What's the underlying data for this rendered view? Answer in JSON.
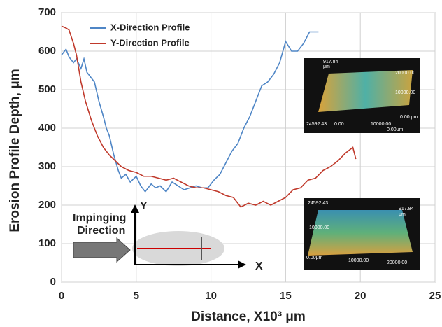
{
  "chart_data": {
    "type": "line",
    "xlabel": "Distance, X10³ μm",
    "ylabel": "Erosion  Profile Depth, μm",
    "xlim": [
      0,
      25
    ],
    "xticks": [
      0,
      5,
      10,
      15,
      20,
      25
    ],
    "ylim": [
      0,
      700
    ],
    "yticks": [
      0,
      100,
      200,
      300,
      400,
      500,
      600,
      700
    ],
    "grid": true,
    "legend": "upper-left",
    "series": [
      {
        "name": "X-Direction Profile",
        "color": "#4f86c6",
        "x": [
          0,
          0.3,
          0.5,
          0.8,
          1,
          1.3,
          1.5,
          1.7,
          2,
          2.2,
          2.5,
          2.8,
          3,
          3.2,
          3.5,
          3.8,
          4,
          4.3,
          4.6,
          5,
          5.3,
          5.6,
          6,
          6.3,
          6.6,
          7,
          7.4,
          7.8,
          8.2,
          8.6,
          9,
          9.4,
          9.8,
          10.2,
          10.6,
          11,
          11.4,
          11.8,
          12.2,
          12.6,
          13,
          13.4,
          13.8,
          14.2,
          14.6,
          15,
          15.4,
          15.8,
          16.2,
          16.6,
          17,
          17.2
        ],
        "values": [
          590,
          605,
          585,
          570,
          580,
          555,
          580,
          545,
          530,
          520,
          470,
          430,
          400,
          380,
          330,
          290,
          270,
          280,
          260,
          275,
          250,
          235,
          255,
          245,
          250,
          235,
          260,
          250,
          240,
          245,
          250,
          245,
          245,
          265,
          280,
          310,
          340,
          360,
          400,
          430,
          470,
          510,
          520,
          540,
          570,
          625,
          600,
          600,
          620,
          650,
          650,
          650
        ]
      },
      {
        "name": "Y-Direction Profile",
        "color": "#c0392b",
        "x": [
          0,
          0.3,
          0.5,
          0.8,
          1,
          1.3,
          1.6,
          2,
          2.4,
          2.8,
          3.2,
          3.6,
          4,
          4.5,
          5,
          5.5,
          6,
          6.5,
          7,
          7.5,
          8,
          8.5,
          9,
          9.5,
          10,
          10.5,
          11,
          11.5,
          12,
          12.5,
          13,
          13.5,
          14,
          14.5,
          15,
          15.5,
          16,
          16.5,
          17,
          17.5,
          18,
          18.5,
          19,
          19.5,
          19.7
        ],
        "values": [
          665,
          660,
          655,
          620,
          590,
          520,
          470,
          420,
          380,
          350,
          330,
          315,
          300,
          290,
          285,
          275,
          275,
          270,
          265,
          270,
          260,
          250,
          245,
          245,
          240,
          235,
          225,
          220,
          195,
          205,
          200,
          210,
          200,
          210,
          220,
          240,
          245,
          265,
          270,
          290,
          300,
          315,
          335,
          350,
          320
        ]
      }
    ],
    "diagram_labels": [
      "Impinging",
      "Direction",
      "Y",
      "X"
    ],
    "inset_labels": [
      "917.84",
      "μm",
      "20000.00",
      "10000.00",
      "0.00 μm",
      "24592.43",
      "0.00",
      "10000.00",
      "0.00μm",
      "24592.43",
      "917.84",
      "μm",
      "10000.00",
      "0.00μm",
      "10000.00",
      "20000.00"
    ]
  }
}
